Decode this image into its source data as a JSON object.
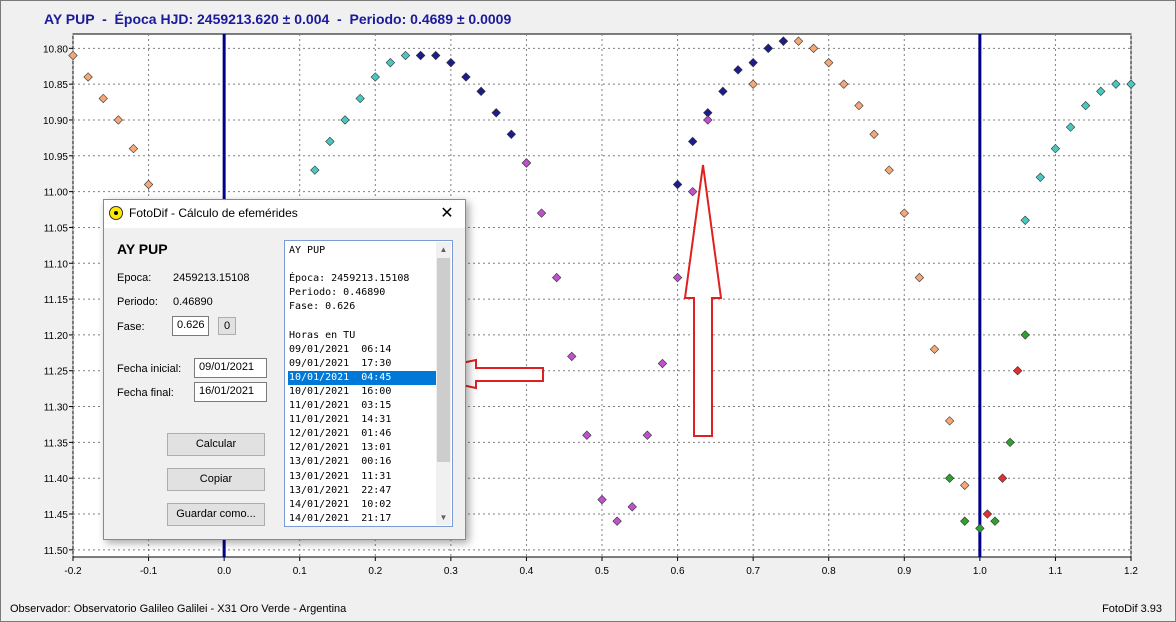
{
  "chart_title": "AY PUP  -  Época HJD: 2459213.620 ± 0.004  -  Periodo: 0.4689 ± 0.0009",
  "chart_data": {
    "type": "scatter",
    "title": "AY PUP  -  Época HJD: 2459213.620 ± 0.004  -  Periodo: 0.4689 ± 0.0009",
    "xlabel": "",
    "ylabel": "",
    "xlim": [
      -0.2,
      1.2
    ],
    "ylim": [
      10.78,
      11.51
    ],
    "y_inverted": true,
    "x_ticks": [
      "-0.2",
      "-0.1",
      "0.0",
      "0.1",
      "0.2",
      "0.3",
      "0.4",
      "0.5",
      "0.6",
      "0.7",
      "0.8",
      "0.9",
      "1.0",
      "1.1",
      "1.2"
    ],
    "y_ticks": [
      "10.80",
      "10.85",
      "10.90",
      "10.95",
      "11.00",
      "11.05",
      "11.10",
      "11.15",
      "11.20",
      "11.25",
      "11.30",
      "11.35",
      "11.40",
      "11.45",
      "11.50"
    ],
    "grid": true,
    "vertical_lines": [
      0.0,
      1.0
    ],
    "series": [
      {
        "color": "#f4a878",
        "x": [
          -0.2,
          -0.18,
          -0.16,
          -0.14,
          -0.12,
          -0.1,
          0.7,
          0.72,
          0.74,
          0.76,
          0.78,
          0.8,
          0.82,
          0.84,
          0.86,
          0.88,
          0.9,
          0.92,
          0.94,
          0.96,
          0.98
        ],
        "y": [
          10.81,
          10.84,
          10.87,
          10.9,
          10.94,
          10.99,
          10.85,
          10.8,
          10.79,
          10.79,
          10.8,
          10.82,
          10.85,
          10.88,
          10.92,
          10.97,
          11.03,
          11.12,
          11.22,
          11.32,
          11.41
        ]
      },
      {
        "color": "#48c8c0",
        "x": [
          0.12,
          0.14,
          0.16,
          0.18,
          0.2,
          0.22,
          0.24,
          0.26,
          1.06,
          1.08,
          1.1,
          1.12,
          1.14,
          1.16,
          1.18,
          1.2
        ],
        "y": [
          10.97,
          10.93,
          10.9,
          10.87,
          10.84,
          10.82,
          10.81,
          10.81,
          11.04,
          10.98,
          10.94,
          10.91,
          10.88,
          10.86,
          10.85,
          10.85
        ]
      },
      {
        "color": "#1c1c8a",
        "x": [
          0.26,
          0.28,
          0.3,
          0.32,
          0.34,
          0.36,
          0.38,
          0.4,
          0.6,
          0.62,
          0.64,
          0.66,
          0.68,
          0.7,
          0.72,
          0.74
        ],
        "y": [
          10.81,
          10.81,
          10.82,
          10.84,
          10.86,
          10.89,
          10.92,
          10.96,
          10.99,
          10.93,
          10.89,
          10.86,
          10.83,
          10.82,
          10.8,
          10.79
        ]
      },
      {
        "color": "#c050d0",
        "x": [
          0.4,
          0.42,
          0.44,
          0.46,
          0.48,
          0.5,
          0.52,
          0.54,
          0.56,
          0.58,
          0.6,
          0.62,
          0.64
        ],
        "y": [
          10.96,
          11.03,
          11.12,
          11.23,
          11.34,
          11.43,
          11.46,
          11.44,
          11.34,
          11.24,
          11.12,
          11.0,
          10.9
        ]
      },
      {
        "color": "#30a030",
        "x": [
          0.96,
          0.98,
          1.0,
          1.02,
          1.04,
          1.06
        ],
        "y": [
          11.4,
          11.46,
          11.47,
          11.46,
          11.35,
          11.2
        ]
      },
      {
        "color": "#e03030",
        "x": [
          1.01,
          1.03,
          1.05
        ],
        "y": [
          11.45,
          11.4,
          11.25
        ]
      }
    ],
    "annotations": [
      {
        "type": "arrow",
        "target": "dialog-list-item-3",
        "color": "#e02020"
      },
      {
        "type": "arrow",
        "target_x": 0.63,
        "target_y": 10.95,
        "color": "#e02020"
      }
    ]
  },
  "footer": {
    "observer": "Observador: Observatorio Galileo Galilei - X31 Oro Verde - Argentina",
    "version": "FotoDif 3.93"
  },
  "dialog": {
    "title": "FotoDif - Cálculo de efemérides",
    "star": "AY PUP",
    "epoca_label": "Epoca:",
    "epoca_value": "2459213.15108",
    "periodo_label": "Periodo:",
    "periodo_value": "0.46890",
    "fase_label": "Fase:",
    "fase_value": "0.626",
    "fase_button": "0",
    "fecha_inicial_label": "Fecha inicial:",
    "fecha_inicial_value": "09/01/2021",
    "fecha_final_label": "Fecha final:",
    "fecha_final_value": "16/01/2021",
    "calcular": "Calcular",
    "copiar": "Copiar",
    "guardar": "Guardar como...",
    "list": [
      "AY PUP",
      "",
      "Época: 2459213.15108",
      "Periodo: 0.46890",
      "Fase: 0.626",
      "",
      "Horas en TU",
      "09/01/2021  06:14",
      "09/01/2021  17:30",
      "10/01/2021  04:45",
      "10/01/2021  16:00",
      "11/01/2021  03:15",
      "11/01/2021  14:31",
      "12/01/2021  01:46",
      "12/01/2021  13:01",
      "13/01/2021  00:16",
      "13/01/2021  11:31",
      "13/01/2021  22:47",
      "14/01/2021  10:02",
      "14/01/2021  21:17"
    ],
    "selected_index": 9,
    "selected_color": "#0078d7"
  },
  "colors": {
    "title": "#1a1a9c",
    "vline": "#00008b",
    "arrow": "#e02020"
  }
}
